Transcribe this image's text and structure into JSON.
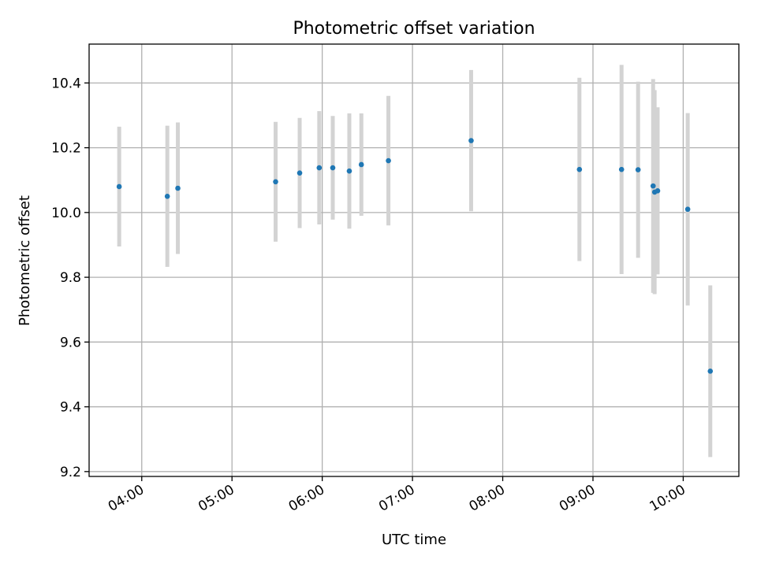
{
  "chart_data": {
    "type": "scatter",
    "title": "Photometric offset variation",
    "xlabel": "UTC time",
    "ylabel": "Photometric offset",
    "x_type": "time",
    "xlim": [
      "03:25",
      "10:37"
    ],
    "ylim": [
      9.185,
      10.52
    ],
    "x_ticks": [
      "04:00",
      "05:00",
      "06:00",
      "07:00",
      "08:00",
      "09:00",
      "10:00"
    ],
    "y_ticks": [
      "9.2",
      "9.4",
      "9.6",
      "9.8",
      "10.0",
      "10.2",
      "10.4"
    ],
    "grid": true,
    "colors": {
      "point": "#1f77b4",
      "errorbar": "#d3d3d3"
    },
    "points": [
      {
        "x": "03:45",
        "y": 10.08,
        "err": 0.185
      },
      {
        "x": "04:17",
        "y": 10.05,
        "err": 0.218
      },
      {
        "x": "04:24",
        "y": 10.075,
        "err": 0.203
      },
      {
        "x": "05:29",
        "y": 10.095,
        "err": 0.185
      },
      {
        "x": "05:45",
        "y": 10.122,
        "err": 0.17
      },
      {
        "x": "05:58",
        "y": 10.138,
        "err": 0.175
      },
      {
        "x": "06:07",
        "y": 10.138,
        "err": 0.16
      },
      {
        "x": "06:18",
        "y": 10.128,
        "err": 0.178
      },
      {
        "x": "06:26",
        "y": 10.148,
        "err": 0.158
      },
      {
        "x": "06:44",
        "y": 10.16,
        "err": 0.2
      },
      {
        "x": "07:39",
        "y": 10.222,
        "err": 0.218
      },
      {
        "x": "08:51",
        "y": 10.133,
        "err": 0.283
      },
      {
        "x": "09:19",
        "y": 10.133,
        "err": 0.323
      },
      {
        "x": "09:30",
        "y": 10.132,
        "err": 0.272
      },
      {
        "x": "09:40",
        "y": 10.082,
        "err": 0.33
      },
      {
        "x": "09:41",
        "y": 10.063,
        "err": 0.315
      },
      {
        "x": "09:43",
        "y": 10.067,
        "err": 0.258
      },
      {
        "x": "10:03",
        "y": 10.01,
        "err": 0.297
      },
      {
        "x": "10:18",
        "y": 9.51,
        "err": 0.265
      }
    ]
  }
}
